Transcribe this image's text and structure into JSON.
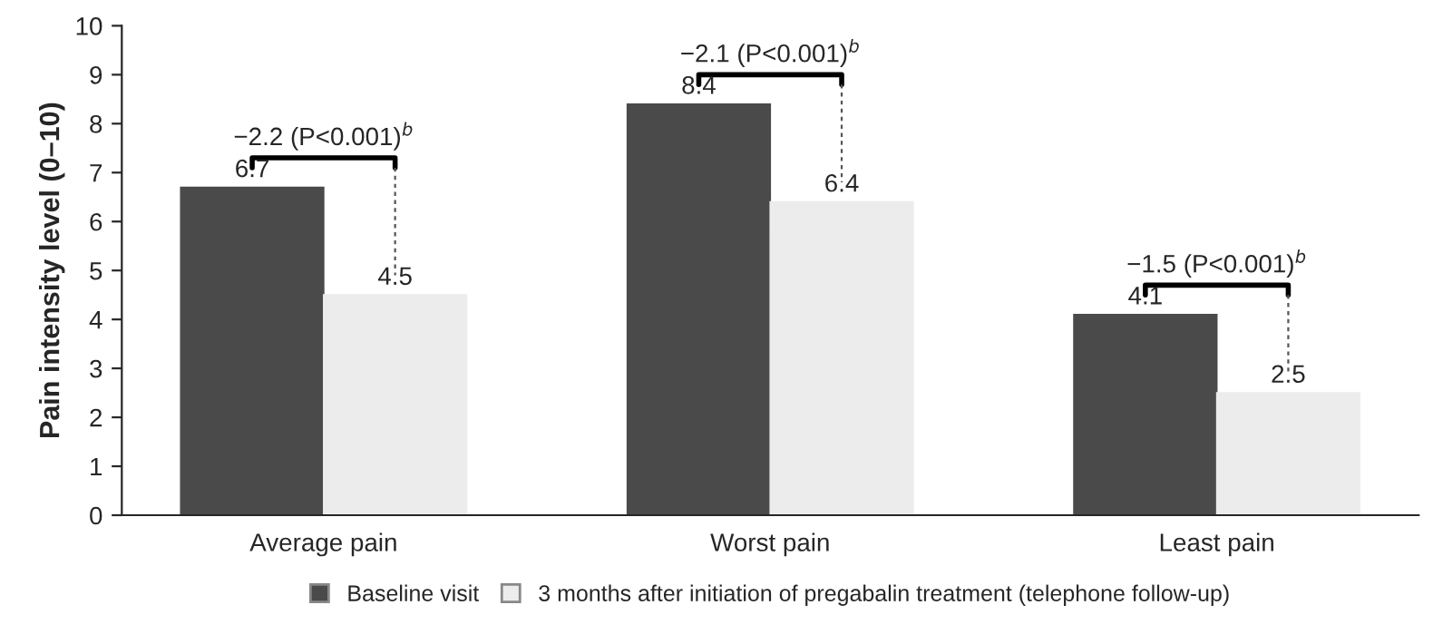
{
  "chart_data": {
    "type": "bar",
    "ylabel": "Pain intensity level (0–10)",
    "categories": [
      "Average pain",
      "Worst pain",
      "Least pain"
    ],
    "series": [
      {
        "name": "Baseline visit",
        "color": "#4a4a4a",
        "values": [
          6.7,
          8.4,
          4.1
        ]
      },
      {
        "name": "3 months after initiation of pregabalin treatment (telephone follow-up)",
        "color": "#ececec",
        "values": [
          4.5,
          6.4,
          2.5
        ]
      }
    ],
    "ylim": [
      0,
      10
    ],
    "yticks": [
      0,
      1,
      2,
      3,
      4,
      5,
      6,
      7,
      8,
      9,
      10
    ],
    "data_labels": true,
    "legend": "bottom",
    "grid": false,
    "annotations": [
      "−2.2 (P<0.001)$^{b}$",
      "−2.1 (P<0.001)$^{b}$",
      "−1.5 (P<0.001)$^{b}$"
    ]
  }
}
